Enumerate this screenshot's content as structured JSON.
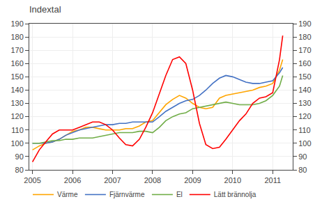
{
  "chart_data": {
    "type": "line",
    "title": "Indextal",
    "x": [
      2005.0,
      2005.17,
      2005.33,
      2005.5,
      2005.67,
      2005.83,
      2006.0,
      2006.17,
      2006.33,
      2006.5,
      2006.67,
      2006.83,
      2007.0,
      2007.17,
      2007.33,
      2007.5,
      2007.67,
      2007.83,
      2008.0,
      2008.17,
      2008.33,
      2008.5,
      2008.67,
      2008.83,
      2009.0,
      2009.17,
      2009.33,
      2009.5,
      2009.67,
      2009.83,
      2010.0,
      2010.17,
      2010.33,
      2010.5,
      2010.67,
      2010.83,
      2011.0,
      2011.17,
      2011.25
    ],
    "series": [
      {
        "name": "Värme",
        "color": "#FFA500",
        "values": [
          95,
          98,
          100,
          101,
          103,
          106,
          109,
          110,
          112,
          112,
          111,
          110,
          110,
          110,
          111,
          111,
          113,
          116,
          117,
          123,
          129,
          133,
          136,
          134,
          130,
          127,
          126,
          127,
          134,
          136,
          137,
          138,
          139,
          140,
          142,
          143,
          145,
          155,
          163
        ]
      },
      {
        "name": "Fjärnvärme",
        "color": "#4472C4",
        "values": [
          100,
          100,
          100,
          101,
          103,
          106,
          108,
          110,
          111,
          112,
          113,
          114,
          114,
          115,
          115,
          116,
          116,
          116,
          116,
          120,
          124,
          127,
          130,
          132,
          133,
          136,
          140,
          145,
          149,
          151,
          150,
          148,
          146,
          145,
          145,
          146,
          147,
          153,
          157
        ]
      },
      {
        "name": "El",
        "color": "#70AD47",
        "values": [
          100,
          100,
          101,
          102,
          102,
          103,
          103,
          104,
          104,
          104,
          105,
          106,
          107,
          108,
          108,
          108,
          109,
          109,
          108,
          112,
          117,
          120,
          122,
          123,
          126,
          127,
          128,
          129,
          130,
          131,
          130,
          129,
          129,
          129,
          130,
          132,
          136,
          143,
          151
        ]
      },
      {
        "name": "Lätt brännolja",
        "color": "#FF0000",
        "values": [
          86,
          95,
          101,
          107,
          110,
          110,
          110,
          112,
          114,
          116,
          116,
          114,
          110,
          104,
          99,
          98,
          103,
          112,
          123,
          138,
          151,
          163,
          165,
          160,
          140,
          115,
          99,
          96,
          97,
          103,
          110,
          117,
          122,
          130,
          134,
          135,
          138,
          163,
          181
        ]
      }
    ],
    "xlim": [
      2004.92,
      2011.5
    ],
    "xticks": [
      2005,
      2006,
      2007,
      2008,
      2009,
      2010,
      2011
    ],
    "ylim": [
      80,
      190
    ],
    "yticks": [
      80,
      90,
      100,
      110,
      120,
      130,
      140,
      150,
      160,
      170,
      180,
      190
    ],
    "y2lim": [
      80,
      190
    ],
    "y2ticks": [
      80,
      90,
      100,
      110,
      120,
      130,
      140,
      150,
      160,
      170,
      180,
      190
    ],
    "grid": true,
    "legend": "lower left"
  }
}
